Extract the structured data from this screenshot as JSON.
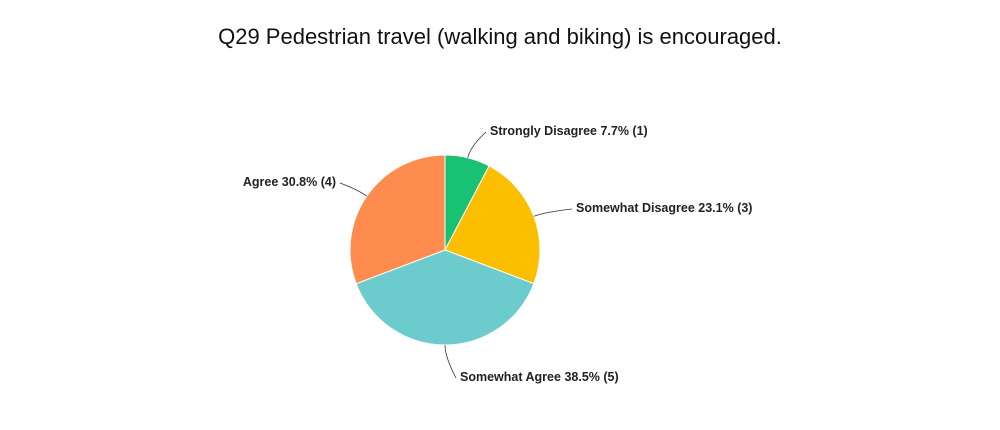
{
  "chart_data": {
    "type": "pie",
    "title": "Q29 Pedestrian travel (walking and biking) is encouraged.",
    "categories": [
      "Strongly Disagree",
      "Somewhat Disagree",
      "Somewhat Agree",
      "Agree"
    ],
    "values": [
      7.7,
      23.1,
      38.5,
      30.8
    ],
    "value_labels": [
      "7.7% (1)",
      "23.1% (3)",
      "38.5% (5)",
      "30.8% (4)"
    ],
    "colors": [
      "#19c173",
      "#fbbf00",
      "#6ccbcd",
      "#ff8c4f"
    ]
  }
}
